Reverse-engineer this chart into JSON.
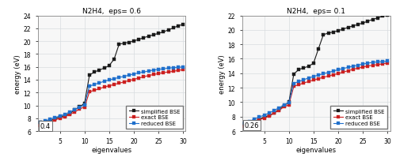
{
  "title1": "N2H4,  eps= 0.6",
  "title2": "N2H4,  eps= 0.1",
  "xlabel": "eigenvalues",
  "ylabel": "energy (eV)",
  "error1": "0.4",
  "error2": "0.26",
  "ylim1": [
    6,
    24
  ],
  "ylim2": [
    6,
    22
  ],
  "yticks1": [
    6,
    8,
    10,
    12,
    14,
    16,
    18,
    20,
    22,
    24
  ],
  "yticks2": [
    6,
    8,
    10,
    12,
    14,
    16,
    18,
    20,
    22
  ],
  "xticks": [
    5,
    10,
    15,
    20,
    25,
    30
  ],
  "simplified_bse_1": [
    7.3,
    7.4,
    7.6,
    7.9,
    8.2,
    8.4,
    8.7,
    9.3,
    9.8,
    10.3,
    14.7,
    15.2,
    15.5,
    15.8,
    16.2,
    17.2,
    19.5,
    19.7,
    19.8,
    20.05,
    20.25,
    20.55,
    20.75,
    21.0,
    21.2,
    21.45,
    21.75,
    22.05,
    22.4,
    22.6
  ],
  "exact_bse_1": [
    6.9,
    7.1,
    7.4,
    7.7,
    8.0,
    8.2,
    8.6,
    8.95,
    9.45,
    9.75,
    12.1,
    12.35,
    12.6,
    12.85,
    13.05,
    13.25,
    13.45,
    13.65,
    13.85,
    14.05,
    14.25,
    14.45,
    14.65,
    14.8,
    14.95,
    15.1,
    15.2,
    15.3,
    15.45,
    15.55
  ],
  "reduced_bse_1": [
    7.3,
    7.55,
    7.85,
    8.1,
    8.35,
    8.6,
    8.95,
    9.35,
    9.75,
    10.05,
    13.0,
    13.25,
    13.5,
    13.75,
    13.95,
    14.15,
    14.35,
    14.5,
    14.7,
    14.9,
    15.05,
    15.2,
    15.35,
    15.5,
    15.6,
    15.7,
    15.8,
    15.87,
    15.93,
    15.97
  ],
  "simplified_bse_2": [
    7.0,
    7.1,
    7.35,
    7.65,
    7.95,
    8.15,
    8.5,
    9.0,
    9.5,
    10.0,
    13.9,
    14.5,
    14.75,
    14.95,
    15.4,
    17.4,
    19.35,
    19.55,
    19.7,
    19.9,
    20.1,
    20.35,
    20.55,
    20.75,
    20.95,
    21.2,
    21.45,
    21.65,
    21.9,
    22.1
  ],
  "exact_bse_2": [
    6.7,
    6.95,
    7.25,
    7.55,
    7.8,
    8.05,
    8.5,
    8.85,
    9.35,
    9.65,
    12.2,
    12.4,
    12.65,
    12.85,
    13.05,
    13.25,
    13.45,
    13.6,
    13.8,
    13.95,
    14.15,
    14.35,
    14.55,
    14.7,
    14.85,
    15.0,
    15.1,
    15.2,
    15.3,
    15.42
  ],
  "reduced_bse_2": [
    7.1,
    7.35,
    7.65,
    7.95,
    8.2,
    8.5,
    8.85,
    9.2,
    9.65,
    9.95,
    12.6,
    12.85,
    13.1,
    13.35,
    13.55,
    13.75,
    13.95,
    14.1,
    14.3,
    14.5,
    14.65,
    14.82,
    14.97,
    15.12,
    15.27,
    15.4,
    15.5,
    15.57,
    15.62,
    15.67
  ],
  "color_simplified": "#1a1a1a",
  "color_exact": "#cc2020",
  "color_reduced": "#2070cc",
  "marker": "s",
  "marker_size": 2.5,
  "line_width": 0.8,
  "axes_bg": "#f7f7f7",
  "grid_color": "#d8dce0"
}
